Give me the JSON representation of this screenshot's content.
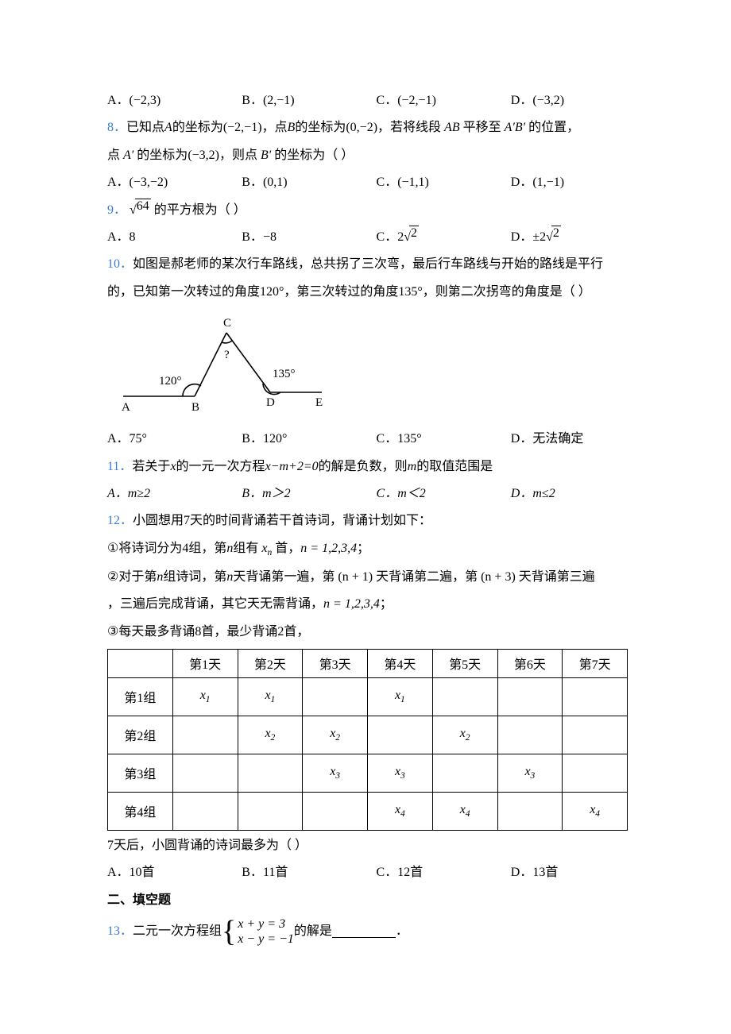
{
  "q7_opts": {
    "A": "A．(−2,3)",
    "B": "B．(2,−1)",
    "C": "C．(−2,−1)",
    "D": "D．(−3,2)"
  },
  "q8": {
    "num": "8．",
    "text1": "已知点",
    "A": "A",
    "text2": "的坐标为",
    "coordA": "(−2,−1)",
    "text3": "，点",
    "B": "B",
    "text4": "的坐标为",
    "coordB": "(0,−2)",
    "text5": "，若将线段 ",
    "AB": "AB",
    "text6": " 平移至 ",
    "ApBp": "A′B′",
    "text7": " 的位置，",
    "line2a": "点 ",
    "Ap": "A′",
    "line2b": " 的坐标为",
    "coordAp": "(−3,2)",
    "line2c": "，则点 ",
    "Bp": "B′",
    "line2d": " 的坐标为（  ）",
    "opts": {
      "A": "A．(−3,−2)",
      "B": "B．(0,1)",
      "C": "C．(−1,1)",
      "D": "D．(1,−1)"
    }
  },
  "q9": {
    "num": "9．",
    "radicand": "64",
    "tail": " 的平方根为（  ）",
    "opts": {
      "A": "A．8",
      "B": "B．−8",
      "C_prefix": "C．",
      "C_coef": "2",
      "C_rad": "2",
      "D_prefix": "D．",
      "D_coef": "±2",
      "D_rad": "2"
    }
  },
  "q10": {
    "num": "10．",
    "line1": "如图是郝老师的某次行车路线，总共拐了三次弯，最后行车路线与开始的路线是平行",
    "line2": "的，已知第一次转过的角度120°，第三次转过的角度135°，则第二次拐弯的角度是（  ）",
    "diagram": {
      "labels": {
        "A": "A",
        "B": "B",
        "C": "C",
        "D": "D",
        "E": "E",
        "ang120": "120°",
        "ang135": "135°",
        "q": "?"
      },
      "stroke": "#000000",
      "stroke_width": 1.6
    },
    "opts": {
      "A": "A．75°",
      "B": "B．120°",
      "C": "C．135°",
      "D": "D．无法确定"
    }
  },
  "q11": {
    "num": "11．",
    "text1": "若关于",
    "x": "x",
    "text2": "的一元一次方程",
    "eq": "x−m+2=0",
    "text3": "的解是负数，则",
    "m": "m",
    "text4": "的取值范围是",
    "opts": {
      "A": "A．m≥2",
      "B": "B．m＞2",
      "C": "C．m＜2",
      "D": "D．m≤2"
    }
  },
  "q12": {
    "num": "12．",
    "line1": "小圆想用7天的时间背诵若干首诗词，背诵计划如下：",
    "b1_a": "将诗词分为4组，第",
    "b1_n": "n",
    "b1_b": "组有 ",
    "b1_xn": "x",
    "b1_nsub": "n",
    "b1_c": " 首，",
    "b1_d": "n = 1,2,3,4",
    "b1_e": "；",
    "b2_a": "对于第",
    "b2_b": "组诗词，第",
    "b2_c": "天背诵第一遍，第 ",
    "b2_np1": "(n + 1)",
    "b2_d": " 天背诵第二遍，第 ",
    "b2_np3": "(n + 3)",
    "b2_e": " 天背诵第三遍",
    "b2_line2": "，三遍后完成背诵，其它天无需背诵，",
    "b3": "每天最多背诵8首，最少背诵2首，",
    "circled": {
      "c1": "①",
      "c2": "②",
      "c3": "③"
    },
    "table": {
      "headers": [
        "",
        "第1天",
        "第2天",
        "第3天",
        "第4天",
        "第5天",
        "第6天",
        "第7天"
      ],
      "row_labels": [
        "第1组",
        "第2组",
        "第3组",
        "第4组"
      ],
      "cells": [
        [
          "x1",
          "x1",
          "",
          "x1",
          "",
          "",
          ""
        ],
        [
          "",
          "x2",
          "x2",
          "",
          "x2",
          "",
          ""
        ],
        [
          "",
          "",
          "x3",
          "x3",
          "",
          "x3",
          ""
        ],
        [
          "",
          "",
          "",
          "x4",
          "x4",
          "",
          "x4"
        ]
      ]
    },
    "after_table": "7天后，小圆背诵的诗词最多为（  ）",
    "opts": {
      "A": "A．10首",
      "B": "B．11首",
      "C": "C．12首",
      "D": "D．13首"
    }
  },
  "section2": "二、填空题",
  "q13": {
    "num": "13．",
    "text1": "二元一次方程组",
    "eq1": "x + y = 3",
    "eq2": "x − y = −1",
    "text2": "的解是",
    "tail": "．"
  }
}
